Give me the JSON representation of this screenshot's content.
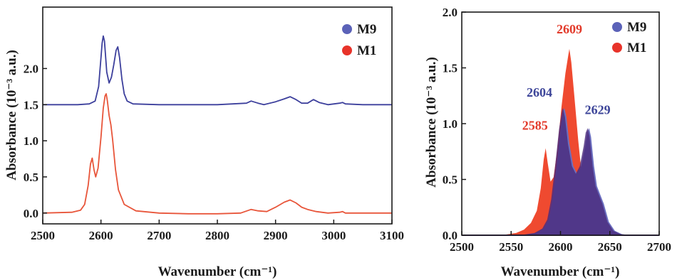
{
  "colors": {
    "m9_line": "#3c3f9c",
    "m1_line": "#e8553a",
    "m9_marker": "#5b62b8",
    "m1_marker": "#e8332a",
    "m9_fill": "#4a2b7d",
    "m9_fill_light": "#6b6fc0",
    "m1_fill": "#ef4a30",
    "m9_peak_label": "#3d4599",
    "m1_peak_label": "#e23a2a"
  },
  "chart_data": [
    {
      "type": "line",
      "xlabel": "Wavenumber (cm⁻¹)",
      "ylabel": "Absorbance (10⁻³ a.u.)",
      "xlim": [
        2500,
        3100
      ],
      "ylim": [
        -0.15,
        2.85
      ],
      "xticks": [
        2500,
        2600,
        2700,
        2800,
        2900,
        3000,
        3100
      ],
      "yticks": [
        0.0,
        0.5,
        1.0,
        1.5,
        2.0
      ],
      "ytick_labels": [
        "0.0",
        "0.5",
        "1.0",
        "1.5",
        "2.0"
      ],
      "legend_position": "top-right",
      "series": [
        {
          "name": "M9",
          "x": [
            2500,
            2560,
            2580,
            2590,
            2596,
            2600,
            2602,
            2604,
            2606,
            2610,
            2614,
            2618,
            2622,
            2626,
            2629,
            2632,
            2636,
            2640,
            2645,
            2655,
            2700,
            2800,
            2850,
            2858,
            2870,
            2880,
            2900,
            2915,
            2925,
            2935,
            2945,
            2955,
            2965,
            2975,
            2990,
            3010,
            3015,
            3020,
            3050,
            3100
          ],
          "y": [
            1.5,
            1.5,
            1.51,
            1.55,
            1.75,
            2.15,
            2.35,
            2.45,
            2.38,
            1.95,
            1.8,
            1.88,
            2.05,
            2.25,
            2.3,
            2.15,
            1.85,
            1.65,
            1.55,
            1.51,
            1.5,
            1.5,
            1.52,
            1.55,
            1.52,
            1.5,
            1.54,
            1.58,
            1.61,
            1.57,
            1.52,
            1.52,
            1.57,
            1.53,
            1.5,
            1.52,
            1.53,
            1.51,
            1.5,
            1.5
          ]
        },
        {
          "name": "M1",
          "x": [
            2500,
            2550,
            2565,
            2572,
            2578,
            2582,
            2585,
            2588,
            2591,
            2595,
            2600,
            2604,
            2607,
            2609,
            2611,
            2614,
            2617,
            2620,
            2625,
            2630,
            2640,
            2660,
            2700,
            2750,
            2800,
            2840,
            2858,
            2870,
            2885,
            2900,
            2915,
            2925,
            2935,
            2945,
            2955,
            2970,
            2990,
            3010,
            3015,
            3020,
            3050,
            3100
          ],
          "y": [
            0.0,
            0.01,
            0.04,
            0.12,
            0.38,
            0.68,
            0.76,
            0.6,
            0.5,
            0.62,
            1.05,
            1.45,
            1.62,
            1.65,
            1.55,
            1.35,
            1.22,
            1.02,
            0.6,
            0.32,
            0.12,
            0.03,
            0.0,
            -0.01,
            -0.01,
            0.0,
            0.05,
            0.03,
            0.02,
            0.08,
            0.15,
            0.18,
            0.14,
            0.08,
            0.05,
            0.02,
            0.0,
            0.01,
            0.02,
            0.0,
            0.0,
            0.0
          ]
        }
      ]
    },
    {
      "type": "area",
      "xlabel": "Wavenumber (cm⁻¹)",
      "ylabel": "Absorbance (10⁻³ a.u.)",
      "xlim": [
        2500,
        2700
      ],
      "ylim": [
        0.0,
        2.0
      ],
      "xticks": [
        2500,
        2550,
        2600,
        2650,
        2700
      ],
      "yticks": [
        0.0,
        0.5,
        1.0,
        1.5,
        2.0
      ],
      "ytick_labels": [
        "0.0",
        "0.5",
        "1.0",
        "1.5",
        "2.0"
      ],
      "legend_position": "top-right",
      "series": [
        {
          "name": "M1",
          "x": [
            2500,
            2540,
            2555,
            2563,
            2570,
            2576,
            2580,
            2583,
            2585,
            2587,
            2590,
            2593,
            2597,
            2601,
            2605,
            2608,
            2609,
            2611,
            2614,
            2618,
            2622,
            2627,
            2632,
            2638,
            2645,
            2655,
            2670,
            2700
          ],
          "y": [
            0.0,
            0.0,
            0.02,
            0.05,
            0.11,
            0.22,
            0.42,
            0.68,
            0.78,
            0.65,
            0.48,
            0.52,
            0.78,
            1.15,
            1.45,
            1.62,
            1.67,
            1.55,
            1.25,
            0.85,
            0.5,
            0.28,
            0.14,
            0.06,
            0.02,
            0.01,
            0.0,
            0.0
          ]
        },
        {
          "name": "M9",
          "x": [
            2500,
            2560,
            2575,
            2583,
            2588,
            2592,
            2596,
            2600,
            2603,
            2604,
            2606,
            2609,
            2613,
            2617,
            2621,
            2625,
            2627,
            2629,
            2631,
            2634,
            2637,
            2640,
            2644,
            2649,
            2655,
            2662,
            2670,
            2700
          ],
          "y": [
            0.0,
            0.0,
            0.02,
            0.06,
            0.14,
            0.32,
            0.62,
            0.95,
            1.12,
            1.14,
            1.06,
            0.82,
            0.62,
            0.55,
            0.62,
            0.8,
            0.92,
            0.96,
            0.88,
            0.62,
            0.44,
            0.37,
            0.28,
            0.12,
            0.04,
            0.01,
            0.0,
            0.0
          ]
        }
      ],
      "annotations": [
        {
          "text": "2609",
          "x": 2609,
          "series": "M1"
        },
        {
          "text": "2585",
          "x": 2585,
          "series": "M1"
        },
        {
          "text": "2604",
          "x": 2604,
          "series": "M9"
        },
        {
          "text": "2629",
          "x": 2629,
          "series": "M9"
        }
      ]
    }
  ]
}
